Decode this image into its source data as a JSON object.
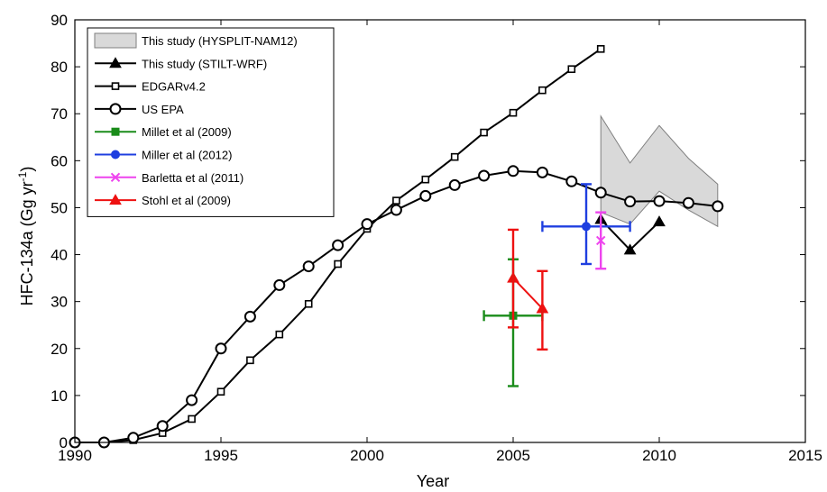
{
  "chart_data": {
    "type": "line",
    "title": "",
    "xlabel": "Year",
    "ylabel_main": "HFC-134a (Gg yr",
    "ylabel_sup": "-1",
    "ylabel_close": ")",
    "xlim": [
      1990,
      2015
    ],
    "ylim": [
      0,
      90
    ],
    "xticks": [
      1990,
      1995,
      2000,
      2005,
      2010,
      2015
    ],
    "yticks": [
      0,
      10,
      20,
      30,
      40,
      50,
      60,
      70,
      80,
      90
    ],
    "grid": false,
    "legend_position": "top-left",
    "colors": {
      "axis": "#000000",
      "band_fill": "#d9d9d9",
      "band_stroke": "#7f7f7f",
      "green": "#1a8c1a",
      "blue": "#1f3fe0",
      "magenta": "#ee44ee",
      "red": "#ee1111",
      "black": "#000000"
    },
    "band": {
      "name": "This study (HYSPLIT-NAM12)",
      "x": [
        2008,
        2009,
        2010,
        2011,
        2012
      ],
      "upper": [
        69.5,
        59.5,
        67.5,
        60.5,
        55
      ],
      "lower": [
        49,
        46.5,
        53.5,
        49.5,
        46
      ]
    },
    "series": [
      {
        "name": "This study (STILT-WRF)",
        "marker": "triangle-filled",
        "color": "#000000",
        "x": [
          2008,
          2009,
          2010
        ],
        "y": [
          47.5,
          41,
          47
        ]
      },
      {
        "name": "EDGARv4.2",
        "marker": "square-open",
        "color": "#000000",
        "x": [
          1990,
          1991,
          1992,
          1993,
          1994,
          1995,
          1996,
          1997,
          1998,
          1999,
          2000,
          2001,
          2002,
          2003,
          2004,
          2005,
          2006,
          2007,
          2008
        ],
        "y": [
          0,
          0,
          0.5,
          2,
          5,
          10.8,
          17.5,
          23,
          29.5,
          38,
          45.5,
          51.5,
          56,
          60.8,
          66,
          70.2,
          75,
          79.5,
          83.8
        ]
      },
      {
        "name": "US EPA",
        "marker": "circle-open",
        "color": "#000000",
        "x": [
          1990,
          1991,
          1992,
          1993,
          1994,
          1995,
          1996,
          1997,
          1998,
          1999,
          2000,
          2001,
          2002,
          2003,
          2004,
          2005,
          2006,
          2007,
          2008,
          2009,
          2010,
          2011,
          2012
        ],
        "y": [
          0,
          0,
          1,
          3.5,
          9,
          20,
          26.8,
          33.5,
          37.5,
          42,
          46.5,
          49.5,
          52.5,
          54.8,
          56.8,
          57.8,
          57.5,
          55.6,
          53.2,
          51.3,
          51.4,
          51,
          50.3
        ]
      },
      {
        "name": "Millet et al (2009)",
        "marker": "square-filled",
        "color": "#1a8c1a",
        "x": [
          2005
        ],
        "y": [
          27
        ],
        "yerr_low": [
          12
        ],
        "yerr_high": [
          39
        ],
        "xerr_low": [
          2004
        ],
        "xerr_high": [
          2006
        ]
      },
      {
        "name": "Miller et al (2012)",
        "marker": "circle-filled",
        "color": "#1f3fe0",
        "x": [
          2007.5
        ],
        "y": [
          46
        ],
        "yerr_low": [
          38
        ],
        "yerr_high": [
          55
        ],
        "xerr_low": [
          2006
        ],
        "xerr_high": [
          2009
        ]
      },
      {
        "name": "Barletta et al (2011)",
        "marker": "x",
        "color": "#ee44ee",
        "x": [
          2008
        ],
        "y": [
          43
        ],
        "yerr_low": [
          37
        ],
        "yerr_high": [
          49
        ],
        "xerr_low": [
          2008
        ],
        "xerr_high": [
          2008
        ]
      },
      {
        "name": "Stohl et al (2009)",
        "marker": "triangle-filled",
        "color": "#ee1111",
        "x": [
          2005,
          2006
        ],
        "y": [
          35,
          28.5
        ],
        "yerr_low": [
          24.5,
          19.8
        ],
        "yerr_high": [
          45.3,
          36.5
        ],
        "xerr_low": [
          2005,
          2006
        ],
        "xerr_high": [
          2005,
          2006
        ]
      }
    ]
  }
}
